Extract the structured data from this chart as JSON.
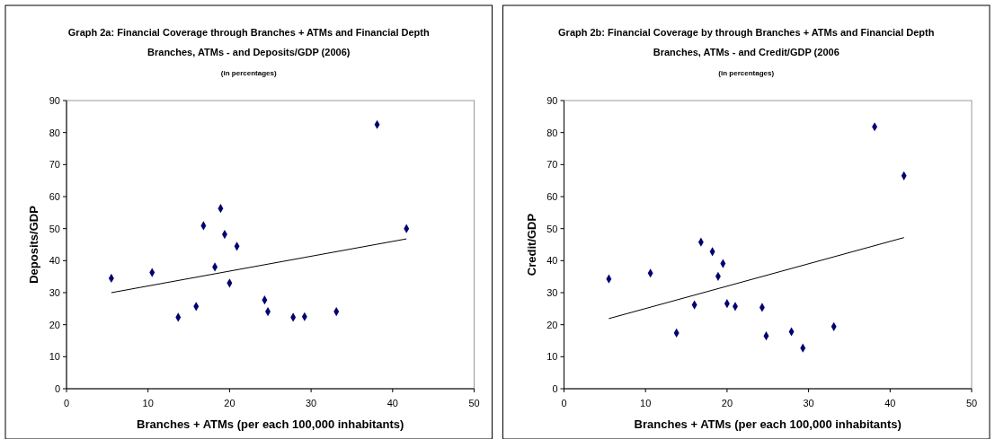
{
  "chart_data": [
    {
      "type": "scatter",
      "title": "Graph 2a: Financial Coverage through Branches + ATMs and Financial Depth",
      "subtitle": "Branches, ATMs - and Deposits/GDP (2006)",
      "annotations": [
        "(in percentages)"
      ],
      "xlabel": "Branches + ATMs (per each 100,000 inhabitants)",
      "ylabel": "Deposits/GDP",
      "xlim": [
        0,
        50
      ],
      "xticks": [
        0,
        10,
        20,
        30,
        40,
        50
      ],
      "ylim": [
        0,
        90
      ],
      "yticks": [
        0,
        10,
        20,
        30,
        40,
        50,
        60,
        70,
        80,
        90
      ],
      "grid": false,
      "series": [
        {
          "type": "scatter",
          "color": "#000080",
          "marker": "diamond",
          "x": [
            5.5,
            10.5,
            13.7,
            15.9,
            16.8,
            18.2,
            18.9,
            19.4,
            20,
            20.9,
            24.3,
            24.7,
            27.8,
            29.2,
            33.1,
            38.1,
            41.7
          ],
          "values": [
            34.5,
            36.3,
            22.3,
            25.7,
            50.9,
            38,
            56.3,
            48.2,
            33,
            44.5,
            27.7,
            24.1,
            22.3,
            22.5,
            24.1,
            82.5,
            50
          ]
        },
        {
          "type": "line",
          "color": "#000000",
          "marker": "none",
          "x": [
            5.5,
            41.7
          ],
          "values": [
            30,
            46.8
          ]
        }
      ]
    },
    {
      "type": "scatter",
      "title": "Graph 2b: Financial Coverage by through Branches + ATMs and Financial Depth",
      "subtitle": "Branches, ATMs - and Credit/GDP (2006",
      "annotations": [
        "(in percentages)"
      ],
      "xlabel": "Branches + ATMs (per each 100,000 inhabitants)",
      "ylabel": "Credit/GDP",
      "xlim": [
        0,
        50
      ],
      "xticks": [
        0,
        10,
        20,
        30,
        40,
        50
      ],
      "ylim": [
        0,
        90
      ],
      "yticks": [
        0,
        10,
        20,
        30,
        40,
        50,
        60,
        70,
        80,
        90
      ],
      "grid": false,
      "series": [
        {
          "type": "scatter",
          "color": "#000080",
          "marker": "diamond",
          "x": [
            5.5,
            10.6,
            13.8,
            16,
            16.8,
            18.2,
            18.9,
            19.5,
            20,
            21,
            24.3,
            24.8,
            27.9,
            29.3,
            33.1,
            38.1,
            41.7
          ],
          "values": [
            34.3,
            36.1,
            17.4,
            26.2,
            45.8,
            42.8,
            35.1,
            39.1,
            26.6,
            25.7,
            25.4,
            16.5,
            17.8,
            12.7,
            19.4,
            81.8,
            66.5
          ]
        },
        {
          "type": "line",
          "color": "#000000",
          "marker": "none",
          "x": [
            5.5,
            41.7
          ],
          "values": [
            21.9,
            47.2
          ]
        }
      ]
    }
  ]
}
